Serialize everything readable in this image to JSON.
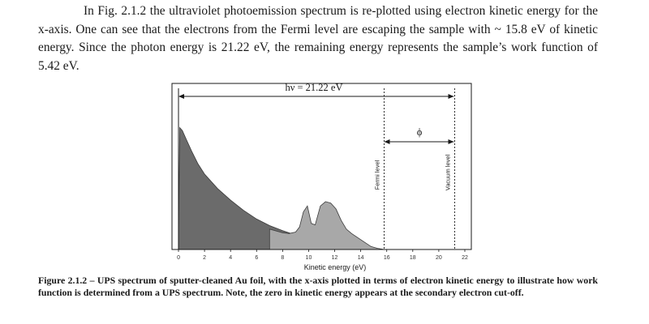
{
  "body_text": "In Fig. 2.1.2 the ultraviolet photoemission spectrum is re-plotted using electron kinetic energy for the x-axis. One can see that the electrons from the Fermi level are escaping the sample with ~ 15.8 eV of kinetic energy. Since the photon energy is 21.22 eV, the remaining energy represents the sample’s work function of 5.42 eV.",
  "figure": {
    "photon_energy_label": "hν = 21.22 eV",
    "work_function_label": "ϕ",
    "fermi_level_label": "Fermi level",
    "vacuum_level_label": "Vacuum level",
    "caption": "Figure 2.1.2 – UPS spectrum of sputter-cleaned Au foil, with the x-axis plotted in terms of electron kinetic energy to illustrate how work function is determined from a UPS spectrum. Note, the zero in kinetic energy appears at the secondary electron cut-off."
  },
  "chart_data": {
    "type": "area",
    "title": "",
    "xlabel": "Kinetic energy (eV)",
    "ylabel": "",
    "xlim": [
      -0.5,
      22.5
    ],
    "ylim": [
      0,
      1.0
    ],
    "x_ticks": [
      0,
      2,
      4,
      6,
      8,
      10,
      12,
      14,
      16,
      18,
      20,
      22
    ],
    "x_tick_labels": [
      "0",
      "2",
      "4",
      "6",
      "8",
      "10",
      "12",
      "14",
      "16",
      "18",
      "20",
      "22"
    ],
    "fermi_level_x": 15.8,
    "vacuum_level_x": 21.22,
    "series": [
      {
        "fill": "#6b6b6b",
        "x": [
          0,
          0.1,
          0.3,
          0.6,
          1,
          1.5,
          2,
          3,
          4,
          5,
          6,
          7,
          8,
          9,
          10,
          11,
          12,
          13,
          14,
          15,
          15.8
        ],
        "y": [
          0.1,
          0.84,
          0.82,
          0.76,
          0.68,
          0.59,
          0.52,
          0.42,
          0.34,
          0.27,
          0.21,
          0.165,
          0.13,
          0.1,
          0.075,
          0.055,
          0.04,
          0.028,
          0.018,
          0.009,
          0
        ]
      },
      {
        "fill": "#a8a8a8",
        "x": [
          7,
          8,
          8.5,
          9,
          9.3,
          9.6,
          9.9,
          10.2,
          10.5,
          10.9,
          11.3,
          11.7,
          12.1,
          12.5,
          12.9,
          13.3,
          13.8,
          14.3,
          14.8,
          15.3,
          15.8
        ],
        "y": [
          0.14,
          0.115,
          0.11,
          0.12,
          0.155,
          0.26,
          0.3,
          0.18,
          0.17,
          0.3,
          0.33,
          0.32,
          0.28,
          0.2,
          0.14,
          0.11,
          0.08,
          0.05,
          0.02,
          0.008,
          0
        ]
      }
    ]
  }
}
